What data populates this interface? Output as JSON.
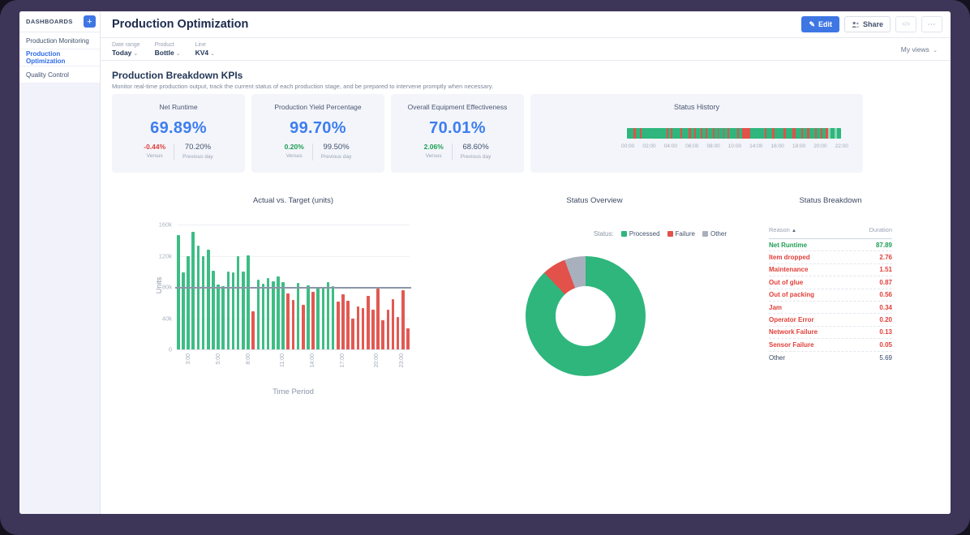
{
  "icons": {
    "plus": "+",
    "pencil": "✎",
    "embed": "</>",
    "ellipsis": "⋯",
    "caret": "⌄",
    "sort_asc": "▲"
  },
  "sidebar": {
    "title": "DASHBOARDS",
    "items": [
      {
        "label": "Production Monitoring",
        "active": false
      },
      {
        "label": "Production Optimization",
        "active": true
      },
      {
        "label": "Quality Control",
        "active": false
      }
    ]
  },
  "header": {
    "title": "Production Optimization",
    "edit_label": "Edit",
    "share_label": "Share"
  },
  "filters": [
    {
      "label": "Date range",
      "value": "Today"
    },
    {
      "label": "Product",
      "value": "Bottle"
    },
    {
      "label": "Line",
      "value": "KV4"
    }
  ],
  "my_views": {
    "label": "My views"
  },
  "section": {
    "title": "Production Breakdown KPIs",
    "subtitle": "Monitor real-time production output, track the current status of each production stage, and be prepared to intervene promptly when necessary."
  },
  "kpis": [
    {
      "title": "Net Runtime",
      "narrow": true,
      "value": "69.89%",
      "delta": "-0.44%",
      "delta_dir": "down",
      "versus_label": "Versus",
      "prev": "70.20%",
      "prev_label": "Previous day"
    },
    {
      "title": "Production Yield Percentage",
      "narrow": false,
      "value": "99.70%",
      "delta": "0.20%",
      "delta_dir": "up",
      "versus_label": "Versus",
      "prev": "99.50%",
      "prev_label": "Previous day"
    },
    {
      "title": "Overall Equipment Effectiveness",
      "narrow": false,
      "value": "70.01%",
      "delta": "2.06%",
      "delta_dir": "up",
      "versus_label": "Versus",
      "prev": "68.60%",
      "prev_label": "Previous day"
    }
  ],
  "chart_data": [
    {
      "type": "bar",
      "title": "Actual vs. Target (units)",
      "xlabel": "Time Period",
      "ylabel": "Units",
      "ylim": [
        0,
        160000
      ],
      "grid": true,
      "yticks": [
        {
          "label": "160k",
          "value": 160000
        },
        {
          "label": "120k",
          "value": 120000
        },
        {
          "label": "80k",
          "value": 80000
        },
        {
          "label": "40k",
          "value": 40000
        },
        {
          "label": "0",
          "value": 0
        }
      ],
      "target": 79000,
      "target_color": "#8b95a7",
      "above_color": "#3dbd85",
      "below_color": "#e25953",
      "values": [
        146000,
        99000,
        119000,
        151000,
        133000,
        119000,
        128000,
        101000,
        83000,
        81000,
        100000,
        99000,
        119000,
        100000,
        121000,
        49000,
        89000,
        84000,
        91000,
        87000,
        94000,
        86000,
        72000,
        63000,
        85000,
        57000,
        82000,
        74000,
        79000,
        80000,
        86000,
        81000,
        61000,
        71000,
        62000,
        39000,
        55000,
        53000,
        69000,
        51000,
        78000,
        37000,
        51000,
        64000,
        42000,
        76000,
        27000
      ],
      "x_ticks": [
        {
          "i": 2,
          "label": "3:00"
        },
        {
          "i": 8,
          "label": "5:00"
        },
        {
          "i": 14,
          "label": "8:00"
        },
        {
          "i": 21,
          "label": "11:00"
        },
        {
          "i": 27,
          "label": "14:00"
        },
        {
          "i": 33,
          "label": "17:00"
        },
        {
          "i": 40,
          "label": "20:00"
        },
        {
          "i": 45,
          "label": "23:00"
        }
      ]
    },
    {
      "type": "pie",
      "title": "Status Overview",
      "legend_label": "Status:",
      "legend_position": "top-right",
      "donut": true,
      "slices": [
        {
          "name": "Processed",
          "value": 87.89,
          "color": "#2eb67d"
        },
        {
          "name": "Failure",
          "value": 6.42,
          "color": "#e2514a"
        },
        {
          "name": "Other",
          "value": 5.69,
          "color": "#a9b0bd"
        }
      ]
    },
    {
      "type": "table",
      "title": "Status Breakdown",
      "columns": [
        "Reason",
        "Duration"
      ],
      "sorted_by": "Reason",
      "rows": [
        {
          "reason": "Net Runtime",
          "duration": "87.89",
          "tone": "green"
        },
        {
          "reason": "Item dropped",
          "duration": "2.76",
          "tone": "red"
        },
        {
          "reason": "Maintenance",
          "duration": "1.51",
          "tone": "red"
        },
        {
          "reason": "Out of glue",
          "duration": "0.87",
          "tone": "red"
        },
        {
          "reason": "Out of packing",
          "duration": "0.56",
          "tone": "red"
        },
        {
          "reason": "Jam",
          "duration": "0.34",
          "tone": "red"
        },
        {
          "reason": "Operator Error",
          "duration": "0.20",
          "tone": "red"
        },
        {
          "reason": "Network Failure",
          "duration": "0.13",
          "tone": "red"
        },
        {
          "reason": "Sensor Failure",
          "duration": "0.05",
          "tone": "red"
        },
        {
          "reason": "Other",
          "duration": "5.69",
          "tone": "dark"
        }
      ]
    },
    {
      "type": "timeline",
      "title": "Status History",
      "ticks": [
        "00:00",
        "02:00",
        "04:00",
        "06:00",
        "08:00",
        "10:00",
        "14:00",
        "16:00",
        "18:00",
        "20:00",
        "22:00"
      ],
      "segment_colors": {
        "g": "#2eb67d",
        "r": "#e2514a",
        "l": "#8ad8b4"
      },
      "segments": [
        [
          "g",
          2.8
        ],
        [
          "r",
          0.9
        ],
        [
          "g",
          1.6
        ],
        [
          "r",
          0.8
        ],
        [
          "g",
          10.5
        ],
        [
          "r",
          0.6
        ],
        [
          "g",
          0.8
        ],
        [
          "r",
          0.9
        ],
        [
          "g",
          3.4
        ],
        [
          "r",
          0.5
        ],
        [
          "g",
          2.8
        ],
        [
          "r",
          0.9
        ],
        [
          "g",
          1.4
        ],
        [
          "r",
          0.6
        ],
        [
          "g",
          2.1
        ],
        [
          "r",
          0.5
        ],
        [
          "g",
          1.4
        ],
        [
          "r",
          0.8
        ],
        [
          "g",
          2.3
        ],
        [
          "r",
          0.6
        ],
        [
          "g",
          1.4
        ],
        [
          "r",
          0.5
        ],
        [
          "g",
          1.8
        ],
        [
          "r",
          0.6
        ],
        [
          "g",
          1.2
        ],
        [
          "r",
          0.5
        ],
        [
          "g",
          3.4
        ],
        [
          "r",
          0.8
        ],
        [
          "g",
          1.2
        ],
        [
          "r",
          3.4
        ],
        [
          "g",
          6.2
        ],
        [
          "r",
          0.6
        ],
        [
          "g",
          2.3
        ],
        [
          "r",
          0.9
        ],
        [
          "g",
          4.0
        ],
        [
          "r",
          0.8
        ],
        [
          "g",
          2.8
        ],
        [
          "r",
          1.4
        ],
        [
          "g",
          2.3
        ],
        [
          "r",
          0.6
        ],
        [
          "g",
          1.8
        ],
        [
          "r",
          0.9
        ],
        [
          "g",
          2.3
        ],
        [
          "r",
          0.6
        ],
        [
          "g",
          1.8
        ],
        [
          "r",
          0.8
        ],
        [
          "g",
          1.2
        ],
        [
          "r",
          0.9
        ],
        [
          "l",
          1.0
        ],
        [
          "g",
          1.8
        ],
        [
          "l",
          1.2
        ],
        [
          "g",
          1.5
        ]
      ]
    }
  ]
}
